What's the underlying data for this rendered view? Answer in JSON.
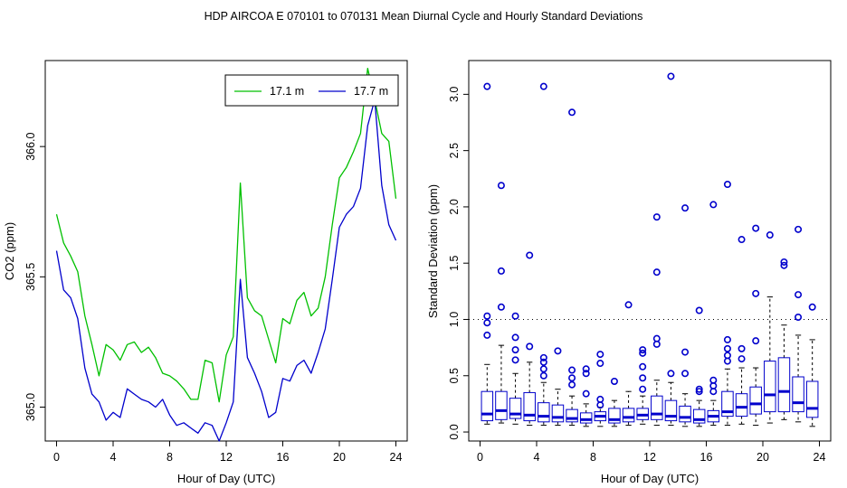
{
  "title": "HDP   AIRCOA E   070101 to 070131   Mean Diurnal Cycle and Hourly Standard Deviations",
  "colors": {
    "series_a": "#00c000",
    "series_b": "#0000cc",
    "box": "#0000cc",
    "outlier": "#0000cc",
    "axis": "#000000"
  },
  "chart_data": [
    {
      "type": "line",
      "xlabel": "Hour of Day (UTC)",
      "ylabel": "CO2 (ppm)",
      "xlim": [
        -0.8,
        24.8
      ],
      "ylim": [
        364.87,
        366.33
      ],
      "xticks": [
        0,
        4,
        8,
        12,
        16,
        20,
        24
      ],
      "xtick_labels": [
        "0",
        "4",
        "8",
        "12",
        "16",
        "20",
        "24"
      ],
      "yticks": [
        365.0,
        365.5,
        366.0
      ],
      "ytick_labels": [
        "365.0",
        "365.5",
        "366.0"
      ],
      "legend_position": "top-right",
      "x": [
        0.0,
        0.5,
        1.0,
        1.5,
        2.0,
        2.5,
        3.0,
        3.5,
        4.0,
        4.5,
        5.0,
        5.5,
        6.0,
        6.5,
        7.0,
        7.5,
        8.0,
        8.5,
        9.0,
        9.5,
        10.0,
        10.5,
        11.0,
        11.5,
        12.0,
        12.5,
        13.0,
        13.5,
        14.0,
        14.5,
        15.0,
        15.5,
        16.0,
        16.5,
        17.0,
        17.5,
        18.0,
        18.5,
        19.0,
        19.5,
        20.0,
        20.5,
        21.0,
        21.5,
        22.0,
        22.5,
        23.0,
        23.5,
        24.0
      ],
      "series": [
        {
          "name": "17.1 m",
          "values": [
            365.74,
            365.63,
            365.58,
            365.52,
            365.35,
            365.24,
            365.12,
            365.24,
            365.22,
            365.18,
            365.24,
            365.25,
            365.21,
            365.23,
            365.19,
            365.13,
            365.12,
            365.1,
            365.07,
            365.03,
            365.03,
            365.18,
            365.17,
            365.02,
            365.2,
            365.27,
            365.86,
            365.42,
            365.37,
            365.35,
            365.26,
            365.17,
            365.34,
            365.32,
            365.41,
            365.44,
            365.35,
            365.38,
            365.5,
            365.7,
            365.88,
            365.92,
            365.98,
            366.05,
            366.3,
            366.18,
            366.05,
            366.02,
            365.8
          ]
        },
        {
          "name": "17.7 m",
          "values": [
            365.6,
            365.45,
            365.42,
            365.34,
            365.15,
            365.05,
            365.02,
            364.95,
            364.98,
            364.96,
            365.07,
            365.05,
            365.03,
            365.02,
            365.0,
            365.03,
            364.97,
            364.93,
            364.94,
            364.92,
            364.9,
            364.94,
            364.93,
            364.87,
            364.94,
            365.02,
            365.49,
            365.19,
            365.13,
            365.06,
            364.96,
            364.98,
            365.11,
            365.1,
            365.16,
            365.18,
            365.13,
            365.21,
            365.3,
            365.49,
            365.69,
            365.74,
            365.77,
            365.84,
            366.08,
            366.18,
            365.85,
            365.7,
            365.64
          ]
        }
      ]
    },
    {
      "type": "box",
      "xlabel": "Hour of Day (UTC)",
      "ylabel": "Standard Deviation (ppm)",
      "xlim": [
        -0.8,
        24.8
      ],
      "ylim": [
        -0.08,
        3.3
      ],
      "xticks": [
        0,
        4,
        8,
        12,
        16,
        20,
        24
      ],
      "xtick_labels": [
        "0",
        "4",
        "8",
        "12",
        "16",
        "20",
        "24"
      ],
      "yticks": [
        0.0,
        0.5,
        1.0,
        1.5,
        2.0,
        2.5,
        3.0
      ],
      "ytick_labels": [
        "0.0",
        "0.5",
        "1.0",
        "1.5",
        "2.0",
        "2.5",
        "3.0"
      ],
      "reference_line": 1.0,
      "boxes": [
        {
          "x": 0.5,
          "lo": 0.07,
          "q1": 0.1,
          "med": 0.16,
          "q3": 0.36,
          "hi": 0.6,
          "out": [
            0.86,
            0.97,
            1.03,
            3.07
          ]
        },
        {
          "x": 1.5,
          "lo": 0.08,
          "q1": 0.11,
          "med": 0.19,
          "q3": 0.36,
          "hi": 0.77,
          "out": [
            1.11,
            1.43,
            2.19
          ]
        },
        {
          "x": 2.5,
          "lo": 0.07,
          "q1": 0.12,
          "med": 0.16,
          "q3": 0.3,
          "hi": 0.52,
          "out": [
            0.64,
            0.73,
            0.84,
            1.03
          ]
        },
        {
          "x": 3.5,
          "lo": 0.06,
          "q1": 0.1,
          "med": 0.15,
          "q3": 0.35,
          "hi": 0.62,
          "out": [
            0.76,
            1.57
          ]
        },
        {
          "x": 4.5,
          "lo": 0.06,
          "q1": 0.09,
          "med": 0.14,
          "q3": 0.26,
          "hi": 0.44,
          "out": [
            0.5,
            0.56,
            0.62,
            0.66,
            3.07
          ]
        },
        {
          "x": 5.5,
          "lo": 0.06,
          "q1": 0.09,
          "med": 0.13,
          "q3": 0.24,
          "hi": 0.38,
          "out": [
            0.72
          ]
        },
        {
          "x": 6.5,
          "lo": 0.06,
          "q1": 0.09,
          "med": 0.12,
          "q3": 0.2,
          "hi": 0.32,
          "out": [
            0.42,
            0.48,
            0.55,
            2.84
          ]
        },
        {
          "x": 7.5,
          "lo": 0.05,
          "q1": 0.08,
          "med": 0.11,
          "q3": 0.17,
          "hi": 0.25,
          "out": [
            0.34,
            0.52,
            0.56
          ]
        },
        {
          "x": 8.5,
          "lo": 0.05,
          "q1": 0.1,
          "med": 0.14,
          "q3": 0.18,
          "hi": 0.22,
          "out": [
            0.24,
            0.29,
            0.61,
            0.69
          ]
        },
        {
          "x": 9.5,
          "lo": 0.05,
          "q1": 0.08,
          "med": 0.11,
          "q3": 0.21,
          "hi": 0.28,
          "out": [
            0.45
          ]
        },
        {
          "x": 10.5,
          "lo": 0.06,
          "q1": 0.09,
          "med": 0.13,
          "q3": 0.21,
          "hi": 0.36,
          "out": [
            1.13
          ]
        },
        {
          "x": 11.5,
          "lo": 0.07,
          "q1": 0.11,
          "med": 0.15,
          "q3": 0.21,
          "hi": 0.32,
          "out": [
            0.38,
            0.48,
            0.58,
            0.7,
            0.73
          ]
        },
        {
          "x": 12.5,
          "lo": 0.06,
          "q1": 0.11,
          "med": 0.16,
          "q3": 0.32,
          "hi": 0.46,
          "out": [
            0.78,
            0.83,
            1.42,
            1.91
          ]
        },
        {
          "x": 13.5,
          "lo": 0.06,
          "q1": 0.1,
          "med": 0.14,
          "q3": 0.28,
          "hi": 0.44,
          "out": [
            0.52,
            3.16
          ]
        },
        {
          "x": 14.5,
          "lo": 0.05,
          "q1": 0.09,
          "med": 0.13,
          "q3": 0.23,
          "hi": 0.34,
          "out": [
            0.52,
            0.71,
            1.99
          ]
        },
        {
          "x": 15.5,
          "lo": 0.05,
          "q1": 0.08,
          "med": 0.11,
          "q3": 0.2,
          "hi": 0.28,
          "out": [
            0.36,
            0.38,
            1.08
          ]
        },
        {
          "x": 16.5,
          "lo": 0.06,
          "q1": 0.09,
          "med": 0.14,
          "q3": 0.19,
          "hi": 0.28,
          "out": [
            0.36,
            0.41,
            0.46,
            2.02
          ]
        },
        {
          "x": 17.5,
          "lo": 0.06,
          "q1": 0.14,
          "med": 0.18,
          "q3": 0.36,
          "hi": 0.56,
          "out": [
            0.63,
            0.68,
            0.74,
            0.82,
            2.2
          ]
        },
        {
          "x": 18.5,
          "lo": 0.07,
          "q1": 0.14,
          "med": 0.22,
          "q3": 0.34,
          "hi": 0.57,
          "out": [
            0.65,
            0.74,
            1.71
          ]
        },
        {
          "x": 19.5,
          "lo": 0.06,
          "q1": 0.16,
          "med": 0.25,
          "q3": 0.4,
          "hi": 0.57,
          "out": [
            0.81,
            1.23,
            1.81
          ]
        },
        {
          "x": 20.5,
          "lo": 0.08,
          "q1": 0.18,
          "med": 0.33,
          "q3": 0.63,
          "hi": 1.2,
          "out": [
            1.75
          ]
        },
        {
          "x": 21.5,
          "lo": 0.11,
          "q1": 0.18,
          "med": 0.36,
          "q3": 0.66,
          "hi": 0.95,
          "out": [
            1.48,
            1.51
          ]
        },
        {
          "x": 22.5,
          "lo": 0.09,
          "q1": 0.18,
          "med": 0.26,
          "q3": 0.49,
          "hi": 0.86,
          "out": [
            1.02,
            1.22,
            1.8
          ]
        },
        {
          "x": 23.5,
          "lo": 0.05,
          "q1": 0.13,
          "med": 0.21,
          "q3": 0.45,
          "hi": 0.82,
          "out": [
            1.11
          ]
        }
      ]
    }
  ]
}
